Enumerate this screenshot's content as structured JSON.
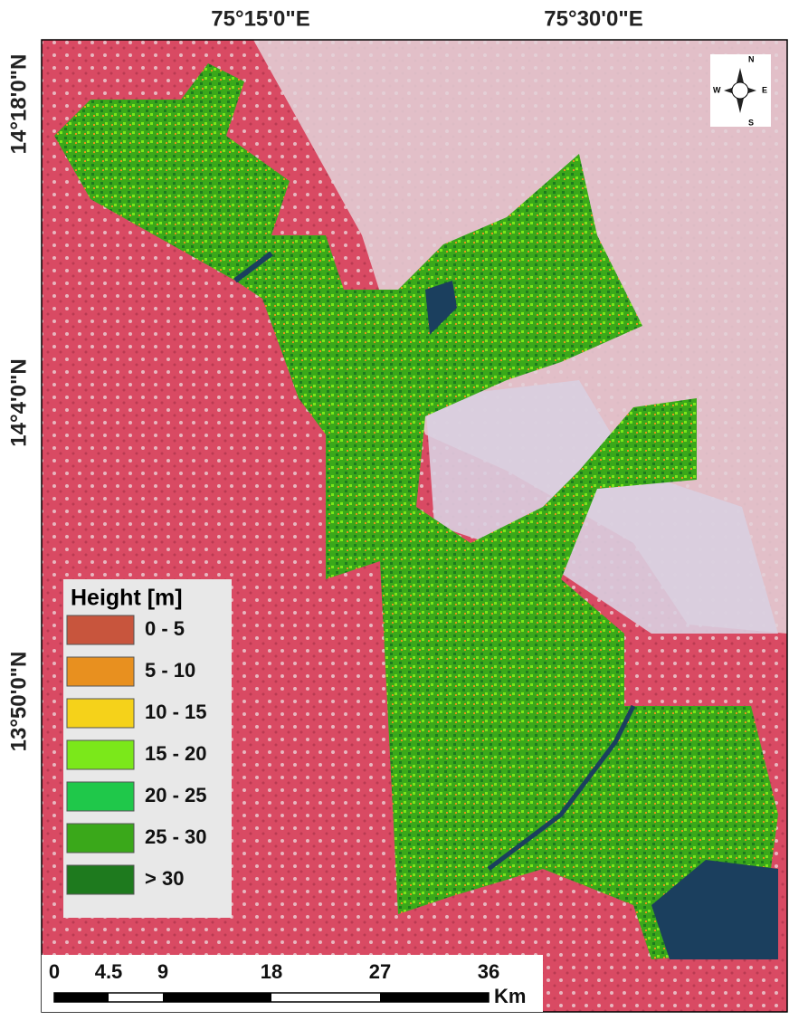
{
  "map": {
    "top_labels": [
      "75°15'0\"E",
      "75°30'0\"E"
    ],
    "left_labels": [
      "14°18'0\"N",
      "14°4'0\"N",
      "13°50'0\"N"
    ],
    "compass": {
      "n": "N",
      "s": "S",
      "e": "E",
      "w": "W"
    },
    "legend": {
      "title": "Height [m]",
      "items": [
        {
          "label": "0 - 5",
          "color": "#c8553d"
        },
        {
          "label": "5 - 10",
          "color": "#e8901f"
        },
        {
          "label": "10 - 15",
          "color": "#f5d21a"
        },
        {
          "label": "15 - 20",
          "color": "#7be81a"
        },
        {
          "label": "20 - 25",
          "color": "#1fc84a"
        },
        {
          "label": "25 - 30",
          "color": "#3aa81a"
        },
        {
          "label": "> 30",
          "color": "#1e7a1e"
        }
      ]
    },
    "scale": {
      "ticks": [
        0,
        4.5,
        9,
        18,
        27,
        36
      ],
      "unit": "Km"
    }
  }
}
